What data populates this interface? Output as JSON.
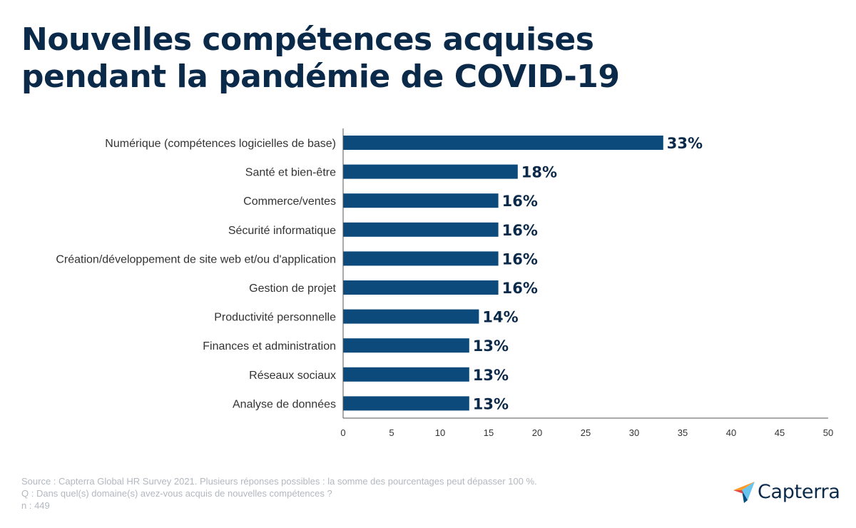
{
  "title": {
    "line1": "Nouvelles compétences acquises",
    "line2": "pendant la pandémie de COVID-19"
  },
  "chart_data": {
    "type": "bar",
    "orientation": "horizontal",
    "categories": [
      "Numérique (compétences logicielles de base)",
      "Santé et bien-être",
      "Commerce/ventes",
      "Sécurité informatique",
      "Création/développement de site web et/ou d'application",
      "Gestion de projet",
      "Productivité personnelle",
      "Finances et administration",
      "Réseaux sociaux",
      "Analyse de données"
    ],
    "values": [
      33,
      18,
      16,
      16,
      16,
      16,
      14,
      13,
      13,
      13
    ],
    "data_labels": [
      "33%",
      "18%",
      "16%",
      "16%",
      "16%",
      "16%",
      "14%",
      "13%",
      "13%",
      "13%"
    ],
    "xlim": [
      0,
      50
    ],
    "xticks": [
      0,
      5,
      10,
      15,
      20,
      25,
      30,
      35,
      40,
      45,
      50
    ],
    "grid": false,
    "bar_color": "#0d4a7c",
    "label_color": "#0b2a4a"
  },
  "footer": {
    "source": "Source : Capterra Global HR Survey 2021. Plusieurs réponses possibles : la somme des pourcentages peut dépasser 100 %.",
    "question": "Q : Dans quel(s) domaine(s) avez-vous acquis de nouvelles compétences ?",
    "n": "n : 449"
  },
  "logo": {
    "text": "Capterra",
    "icon": "capterra-logo-icon",
    "colors": [
      "#ff9d28",
      "#68c5ed",
      "#044d80",
      "#e54747"
    ]
  }
}
